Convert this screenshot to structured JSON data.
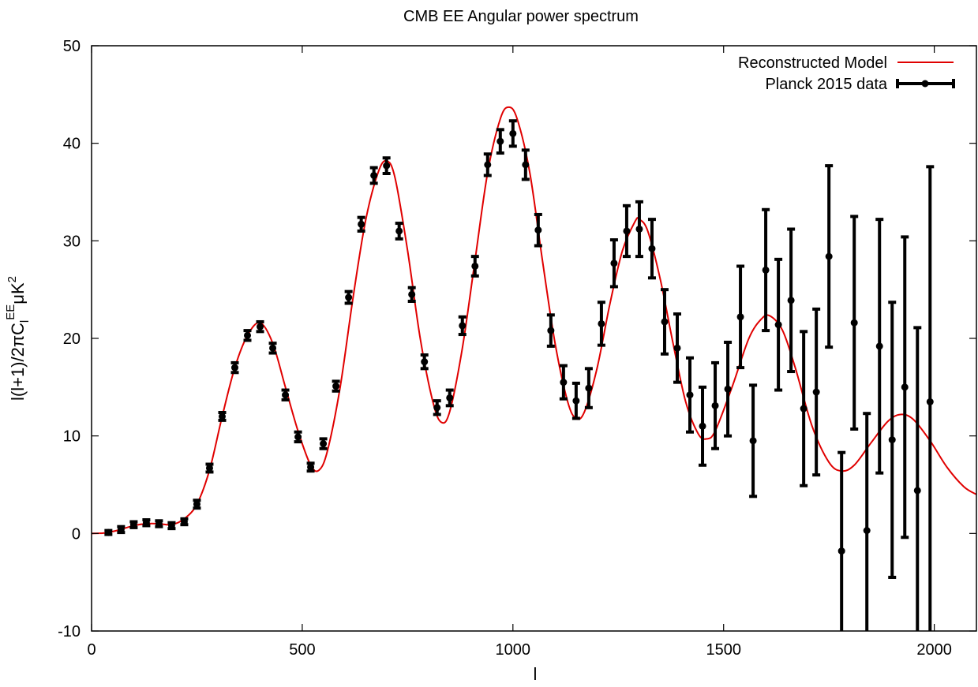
{
  "chart_data": {
    "type": "line",
    "title": "CMB EE Angular power spectrum",
    "xlabel": "l",
    "ylabel": {
      "base": "l(l+1)/2πC",
      "sub": "l",
      "sup": "EE",
      "rest": "μK",
      "rest_sup": "2"
    },
    "xlim": [
      0,
      2100
    ],
    "ylim": [
      -10,
      50
    ],
    "xticks": [
      0,
      500,
      1000,
      1500,
      2000
    ],
    "yticks": [
      -10,
      0,
      10,
      20,
      30,
      40,
      50
    ],
    "grid": false,
    "legend_position": "top-right",
    "colors": {
      "model": "#e00000",
      "data": "#000000"
    },
    "series": [
      {
        "name": "Reconstructed Model",
        "kind": "line",
        "points": [
          [
            0,
            0
          ],
          [
            30,
            0.05
          ],
          [
            60,
            0.3
          ],
          [
            100,
            0.8
          ],
          [
            130,
            1.0
          ],
          [
            160,
            1.0
          ],
          [
            190,
            0.9
          ],
          [
            220,
            1.5
          ],
          [
            250,
            3.0
          ],
          [
            280,
            6.5
          ],
          [
            310,
            12.0
          ],
          [
            340,
            17.0
          ],
          [
            370,
            20.3
          ],
          [
            400,
            21.6
          ],
          [
            430,
            19.5
          ],
          [
            460,
            15.0
          ],
          [
            490,
            10.5
          ],
          [
            520,
            7.0
          ],
          [
            540,
            6.5
          ],
          [
            560,
            8.5
          ],
          [
            590,
            15.0
          ],
          [
            620,
            24.0
          ],
          [
            650,
            32.0
          ],
          [
            680,
            37.0
          ],
          [
            700,
            38.2
          ],
          [
            720,
            36.5
          ],
          [
            750,
            29.0
          ],
          [
            780,
            20.0
          ],
          [
            810,
            13.5
          ],
          [
            830,
            11.4
          ],
          [
            850,
            12.5
          ],
          [
            880,
            19.0
          ],
          [
            910,
            28.0
          ],
          [
            940,
            37.0
          ],
          [
            970,
            42.5
          ],
          [
            990,
            43.7
          ],
          [
            1010,
            42.5
          ],
          [
            1040,
            37.0
          ],
          [
            1070,
            28.0
          ],
          [
            1100,
            19.5
          ],
          [
            1130,
            13.5
          ],
          [
            1150,
            11.8
          ],
          [
            1170,
            12.5
          ],
          [
            1200,
            17.0
          ],
          [
            1230,
            23.5
          ],
          [
            1260,
            29.0
          ],
          [
            1290,
            32.0
          ],
          [
            1300,
            32.2
          ],
          [
            1320,
            31.0
          ],
          [
            1350,
            26.0
          ],
          [
            1380,
            19.5
          ],
          [
            1410,
            13.5
          ],
          [
            1440,
            10.2
          ],
          [
            1460,
            9.7
          ],
          [
            1480,
            10.5
          ],
          [
            1520,
            15.0
          ],
          [
            1560,
            20.0
          ],
          [
            1590,
            22.0
          ],
          [
            1610,
            22.3
          ],
          [
            1640,
            20.8
          ],
          [
            1670,
            17.0
          ],
          [
            1710,
            11.0
          ],
          [
            1750,
            7.3
          ],
          [
            1780,
            6.4
          ],
          [
            1810,
            7.0
          ],
          [
            1850,
            9.3
          ],
          [
            1890,
            11.5
          ],
          [
            1920,
            12.2
          ],
          [
            1950,
            11.7
          ],
          [
            1990,
            9.5
          ],
          [
            2030,
            6.8
          ],
          [
            2070,
            4.8
          ],
          [
            2100,
            4.0
          ]
        ]
      },
      {
        "name": "Planck 2015 data",
        "kind": "errorbar",
        "points": [
          {
            "x": 40,
            "y": 0.1,
            "err": 0.2
          },
          {
            "x": 70,
            "y": 0.4,
            "err": 0.3
          },
          {
            "x": 100,
            "y": 0.9,
            "err": 0.3
          },
          {
            "x": 130,
            "y": 1.1,
            "err": 0.3
          },
          {
            "x": 160,
            "y": 1.0,
            "err": 0.3
          },
          {
            "x": 190,
            "y": 0.8,
            "err": 0.3
          },
          {
            "x": 220,
            "y": 1.2,
            "err": 0.3
          },
          {
            "x": 250,
            "y": 3.0,
            "err": 0.4
          },
          {
            "x": 280,
            "y": 6.7,
            "err": 0.4
          },
          {
            "x": 310,
            "y": 12.0,
            "err": 0.4
          },
          {
            "x": 340,
            "y": 17.0,
            "err": 0.5
          },
          {
            "x": 370,
            "y": 20.3,
            "err": 0.5
          },
          {
            "x": 400,
            "y": 21.2,
            "err": 0.5
          },
          {
            "x": 430,
            "y": 19.0,
            "err": 0.5
          },
          {
            "x": 460,
            "y": 14.2,
            "err": 0.5
          },
          {
            "x": 490,
            "y": 9.9,
            "err": 0.5
          },
          {
            "x": 520,
            "y": 6.8,
            "err": 0.4
          },
          {
            "x": 550,
            "y": 9.2,
            "err": 0.5
          },
          {
            "x": 580,
            "y": 15.1,
            "err": 0.5
          },
          {
            "x": 610,
            "y": 24.2,
            "err": 0.6
          },
          {
            "x": 640,
            "y": 31.7,
            "err": 0.7
          },
          {
            "x": 670,
            "y": 36.7,
            "err": 0.8
          },
          {
            "x": 700,
            "y": 37.7,
            "err": 0.8
          },
          {
            "x": 730,
            "y": 31.0,
            "err": 0.8
          },
          {
            "x": 760,
            "y": 24.5,
            "err": 0.7
          },
          {
            "x": 790,
            "y": 17.6,
            "err": 0.7
          },
          {
            "x": 820,
            "y": 12.9,
            "err": 0.7
          },
          {
            "x": 850,
            "y": 13.9,
            "err": 0.8
          },
          {
            "x": 880,
            "y": 21.3,
            "err": 0.9
          },
          {
            "x": 910,
            "y": 27.4,
            "err": 1.0
          },
          {
            "x": 940,
            "y": 37.8,
            "err": 1.1
          },
          {
            "x": 970,
            "y": 40.2,
            "err": 1.2
          },
          {
            "x": 1000,
            "y": 41.0,
            "err": 1.3
          },
          {
            "x": 1030,
            "y": 37.8,
            "err": 1.5
          },
          {
            "x": 1060,
            "y": 31.1,
            "err": 1.6
          },
          {
            "x": 1090,
            "y": 20.8,
            "err": 1.6
          },
          {
            "x": 1120,
            "y": 15.5,
            "err": 1.7
          },
          {
            "x": 1150,
            "y": 13.6,
            "err": 1.8
          },
          {
            "x": 1180,
            "y": 14.9,
            "err": 2.0
          },
          {
            "x": 1210,
            "y": 21.5,
            "err": 2.2
          },
          {
            "x": 1240,
            "y": 27.7,
            "err": 2.4
          },
          {
            "x": 1270,
            "y": 31.0,
            "err": 2.6
          },
          {
            "x": 1300,
            "y": 31.2,
            "err": 2.8
          },
          {
            "x": 1330,
            "y": 29.2,
            "err": 3.0
          },
          {
            "x": 1360,
            "y": 21.7,
            "err": 3.3
          },
          {
            "x": 1390,
            "y": 19.0,
            "err": 3.5
          },
          {
            "x": 1420,
            "y": 14.2,
            "err": 3.8
          },
          {
            "x": 1450,
            "y": 11.0,
            "err": 4.0
          },
          {
            "x": 1480,
            "y": 13.1,
            "err": 4.4
          },
          {
            "x": 1510,
            "y": 14.8,
            "err": 4.8
          },
          {
            "x": 1540,
            "y": 22.2,
            "err": 5.2
          },
          {
            "x": 1570,
            "y": 9.5,
            "err": 5.7
          },
          {
            "x": 1600,
            "y": 27.0,
            "err": 6.2
          },
          {
            "x": 1630,
            "y": 21.4,
            "err": 6.7
          },
          {
            "x": 1660,
            "y": 23.9,
            "err": 7.3
          },
          {
            "x": 1690,
            "y": 12.8,
            "err": 7.9
          },
          {
            "x": 1720,
            "y": 14.5,
            "err": 8.5
          },
          {
            "x": 1750,
            "y": 28.4,
            "err": 9.3
          },
          {
            "x": 1780,
            "y": -1.8,
            "err": 10.1
          },
          {
            "x": 1810,
            "y": 21.6,
            "err": 10.9
          },
          {
            "x": 1840,
            "y": 0.3,
            "err": 12.0
          },
          {
            "x": 1870,
            "y": 19.2,
            "err": 13.0
          },
          {
            "x": 1900,
            "y": 9.6,
            "err": 14.1
          },
          {
            "x": 1930,
            "y": 15.0,
            "err": 15.4
          },
          {
            "x": 1960,
            "y": 4.4,
            "err": 16.7
          },
          {
            "x": 1990,
            "y": 13.5,
            "err": 24.1
          }
        ]
      }
    ]
  }
}
